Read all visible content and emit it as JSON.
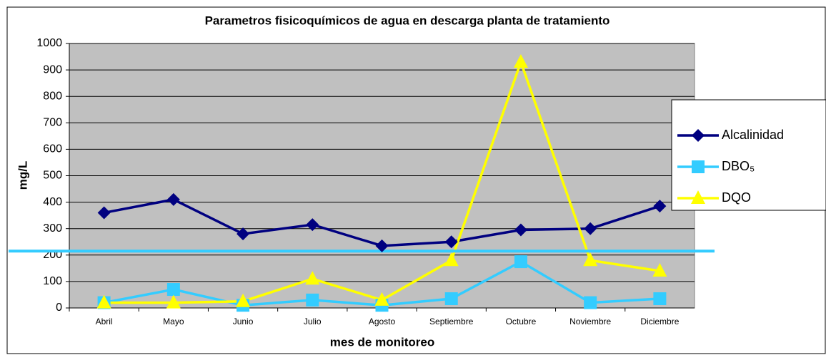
{
  "chart_data": {
    "type": "line",
    "title": "Parametros fisicoquímicos de agua en descarga planta de tratamiento",
    "y_label": "mg/L",
    "x_label": "mes de monitoreo",
    "categories": [
      "Abril",
      "Mayo",
      "Junio",
      "Julio",
      "Agosto",
      "Septiembre",
      "Octubre",
      "Noviembre",
      "Diciembre"
    ],
    "series": [
      {
        "name": "Alcalinidad",
        "color": "#000080",
        "marker": "diamond",
        "values": [
          360,
          410,
          280,
          315,
          235,
          250,
          295,
          300,
          385
        ]
      },
      {
        "name": "DBO₅",
        "color": "#33ccff",
        "marker": "square",
        "values": [
          20,
          70,
          10,
          30,
          10,
          35,
          175,
          20,
          35
        ]
      },
      {
        "name": "DQO",
        "color": "#ffff00",
        "marker": "triangle",
        "values": [
          20,
          20,
          25,
          110,
          30,
          180,
          930,
          180,
          140
        ]
      }
    ],
    "reference_line": {
      "value": 215,
      "color": "#33ccff"
    },
    "ylim": [
      0,
      1000
    ],
    "yticks": [
      0,
      100,
      200,
      300,
      400,
      500,
      600,
      700,
      800,
      900,
      1000
    ],
    "grid": true,
    "legend": "right"
  }
}
